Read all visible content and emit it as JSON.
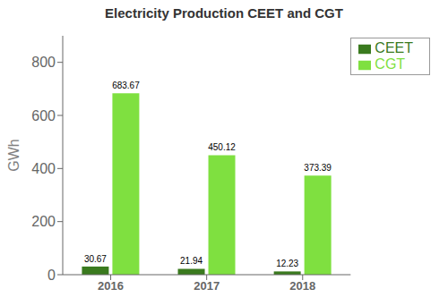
{
  "chart_data": {
    "type": "bar",
    "title": "Electricity Production CEET and CGT",
    "ylabel": "GWh",
    "categories": [
      "2016",
      "2017",
      "2018"
    ],
    "series": [
      {
        "name": "CEET",
        "color": "#3a7a1e",
        "values": [
          30.67,
          21.94,
          12.23
        ]
      },
      {
        "name": "CGT",
        "color": "#7FE040",
        "values": [
          683.67,
          450.12,
          373.39
        ]
      }
    ],
    "ylim": [
      0,
      900
    ],
    "yticks": [
      0,
      200,
      400,
      600,
      800
    ],
    "grid": false,
    "legend": "upper right",
    "data_labels": true
  }
}
